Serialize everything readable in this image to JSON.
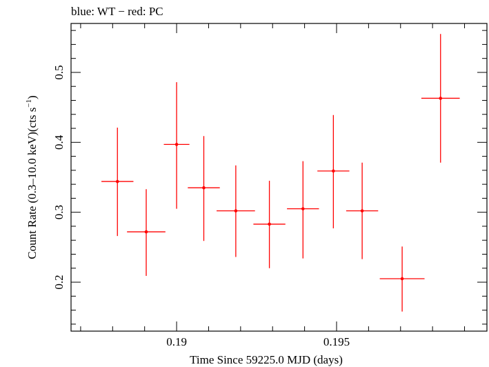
{
  "chart_data": {
    "type": "scatter",
    "title": "blue: WT − red: PC",
    "xlabel": "Time Since 59225.0 MJD (days)",
    "ylabel": "Count Rate (0.3–10.0 keV)(cts s",
    "ylabel_sup": "−1",
    "ylabel_close": ")",
    "xlim": [
      0.1867,
      0.1997
    ],
    "ylim": [
      0.13,
      0.57
    ],
    "x_major_ticks": [
      0.19,
      0.195
    ],
    "x_tick_labels": [
      "0.19",
      "0.195"
    ],
    "y_major_ticks": [
      0.2,
      0.3,
      0.4,
      0.5
    ],
    "y_tick_labels": [
      "0.2",
      "0.3",
      "0.4",
      "0.5"
    ],
    "grid": false,
    "series": [
      {
        "color": "#ff0000",
        "points": [
          {
            "x": 0.18815,
            "xerr": 0.0005,
            "y": 0.344,
            "ylo": 0.266,
            "yhi": 0.421
          },
          {
            "x": 0.18905,
            "xerr": 0.0006,
            "y": 0.272,
            "ylo": 0.209,
            "yhi": 0.333
          },
          {
            "x": 0.19,
            "xerr": 0.0004,
            "y": 0.397,
            "ylo": 0.305,
            "yhi": 0.486
          },
          {
            "x": 0.19085,
            "xerr": 0.0005,
            "y": 0.335,
            "ylo": 0.259,
            "yhi": 0.409
          },
          {
            "x": 0.19185,
            "xerr": 0.0006,
            "y": 0.302,
            "ylo": 0.236,
            "yhi": 0.367
          },
          {
            "x": 0.1929,
            "xerr": 0.0005,
            "y": 0.283,
            "ylo": 0.22,
            "yhi": 0.345
          },
          {
            "x": 0.19395,
            "xerr": 0.0005,
            "y": 0.305,
            "ylo": 0.234,
            "yhi": 0.373
          },
          {
            "x": 0.1949,
            "xerr": 0.0005,
            "y": 0.359,
            "ylo": 0.277,
            "yhi": 0.439
          },
          {
            "x": 0.1958,
            "xerr": 0.0005,
            "y": 0.302,
            "ylo": 0.233,
            "yhi": 0.371
          },
          {
            "x": 0.19705,
            "xerr": 0.0007,
            "y": 0.205,
            "ylo": 0.158,
            "yhi": 0.251
          },
          {
            "x": 0.19825,
            "xerr": 0.0006,
            "y": 0.463,
            "ylo": 0.371,
            "yhi": 0.555
          }
        ]
      }
    ]
  }
}
